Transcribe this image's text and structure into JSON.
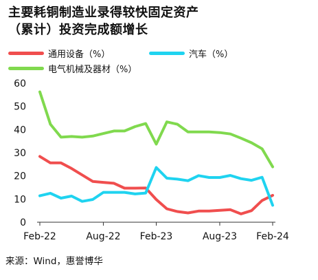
{
  "title_line1": "主要耗铜制造业录得较快固定资产",
  "title_line2": "（累计）投资完成额增长",
  "source": "来源：Wind，惠誉博华",
  "colors": {
    "general_equipment": "#f04e4e",
    "auto": "#1fd3f0",
    "electrical": "#80d94e",
    "axis": "#333333"
  },
  "chart_data": {
    "type": "line",
    "title": "主要耗铜制造业录得较快固定资产（累计）投资完成额增长",
    "xlabel": "",
    "ylabel": "",
    "ylim": [
      0,
      60
    ],
    "yticks": [
      0,
      10,
      20,
      30,
      40,
      50,
      60
    ],
    "grid": false,
    "legend_position": "top",
    "x": [
      "Feb-22",
      "Mar-22",
      "Apr-22",
      "May-22",
      "Jun-22",
      "Jul-22",
      "Aug-22",
      "Sep-22",
      "Oct-22",
      "Nov-22",
      "Dec-22",
      "Feb-23",
      "Mar-23",
      "Apr-23",
      "May-23",
      "Jun-23",
      "Jul-23",
      "Aug-23",
      "Sep-23",
      "Oct-23",
      "Nov-23",
      "Dec-23",
      "Feb-24"
    ],
    "xtick_labels": [
      "Feb-22",
      "Aug-22",
      "Feb-23",
      "Aug-23",
      "Feb-24"
    ],
    "series": [
      {
        "name": "通用设备（%）",
        "color_key": "general_equipment",
        "values": [
          28.4,
          25.6,
          25.6,
          23.2,
          20.4,
          17.6,
          17.2,
          16.8,
          14.7,
          14.7,
          14.8,
          9.8,
          5.8,
          4.6,
          4.0,
          4.8,
          4.8,
          5.1,
          5.4,
          3.6,
          5.0,
          9.4,
          11.6
        ]
      },
      {
        "name": "汽车（%）",
        "color_key": "auto",
        "values": [
          11.4,
          12.5,
          10.4,
          11.3,
          9.0,
          9.8,
          12.9,
          12.9,
          12.9,
          12.2,
          12.6,
          23.6,
          19.0,
          18.6,
          17.9,
          20.1,
          19.3,
          19.3,
          20.2,
          18.8,
          18.1,
          19.4,
          7.3
        ]
      },
      {
        "name": "电气机械及器材（%）",
        "color_key": "electrical",
        "values": [
          56.3,
          42.3,
          36.7,
          37.0,
          36.7,
          37.2,
          38.3,
          39.4,
          39.4,
          41.3,
          42.6,
          33.7,
          43.3,
          42.3,
          39.0,
          39.0,
          39.0,
          38.7,
          38.1,
          36.3,
          34.3,
          31.7,
          23.9
        ]
      }
    ]
  }
}
